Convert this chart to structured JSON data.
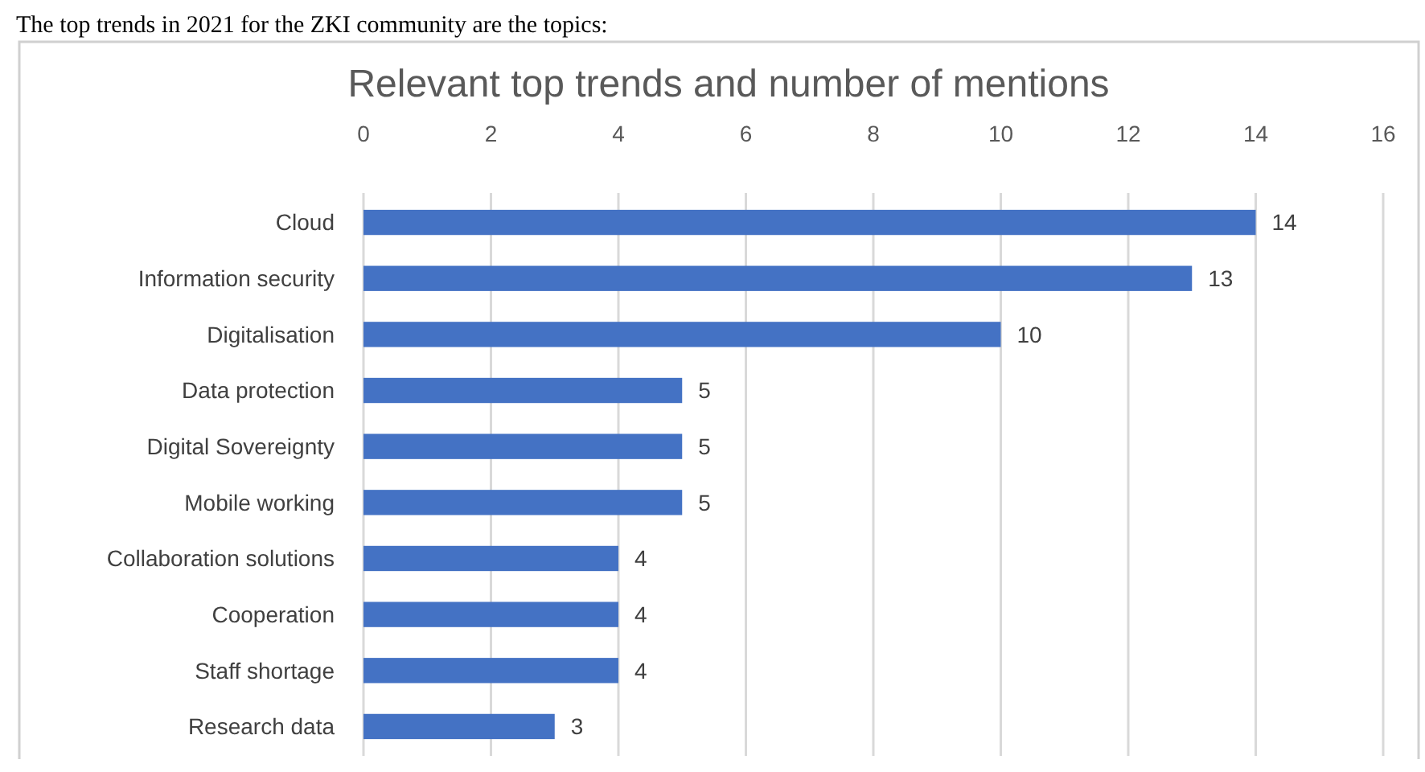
{
  "chart_data": {
    "type": "bar",
    "orientation": "horizontal",
    "title": "Relevant top trends and number of mentions",
    "annotations": [
      "The top trends in 2021 for the ZKI community are the topics:"
    ],
    "categories": [
      "Cloud",
      "Information security",
      "Digitalisation",
      "Data protection",
      "Digital Sovereignty",
      "Mobile working",
      "Collaboration solutions",
      "Cooperation",
      "Staff shortage",
      "Research data"
    ],
    "values": [
      14,
      13,
      10,
      5,
      5,
      5,
      4,
      4,
      4,
      3
    ],
    "color": "#4472c4",
    "xlim": [
      0,
      16
    ],
    "xticks": [
      0,
      2,
      4,
      6,
      8,
      10,
      12,
      14,
      16
    ],
    "grid": "x",
    "data_labels": true
  }
}
